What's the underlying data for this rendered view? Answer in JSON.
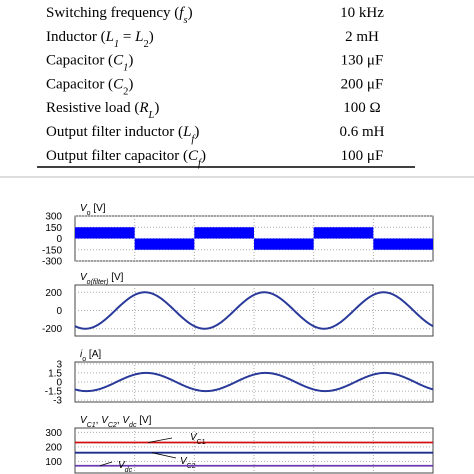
{
  "table": {
    "rows": [
      {
        "parameter": [
          {
            "t": "Switching frequency ("
          },
          {
            "t": "f",
            "i": true
          },
          {
            "t": "s",
            "i": true,
            "sub": true
          },
          {
            "t": ")"
          }
        ],
        "value": "10 kHz"
      },
      {
        "parameter": [
          {
            "t": "Inductor ("
          },
          {
            "t": "L",
            "i": true
          },
          {
            "t": "1",
            "i": true,
            "sub": true
          },
          {
            "t": " = "
          },
          {
            "t": "L",
            "i": true
          },
          {
            "t": "2",
            "sub": true
          },
          {
            "t": ")"
          }
        ],
        "value": "2 mH"
      },
      {
        "parameter": [
          {
            "t": "Capacitor ("
          },
          {
            "t": "C",
            "i": true
          },
          {
            "t": "1",
            "i": true,
            "sub": true
          },
          {
            "t": ")"
          }
        ],
        "value": "130 μF"
      },
      {
        "parameter": [
          {
            "t": "Capacitor ("
          },
          {
            "t": "C",
            "i": true
          },
          {
            "t": "2",
            "sub": true
          },
          {
            "t": ")"
          }
        ],
        "value": "200 μF"
      },
      {
        "parameter": [
          {
            "t": "Resistive load ("
          },
          {
            "t": "R",
            "i": true
          },
          {
            "t": "L",
            "i": true,
            "sub": true
          },
          {
            "t": ")"
          }
        ],
        "value": "100 Ω"
      },
      {
        "parameter": [
          {
            "t": "Output filter inductor ("
          },
          {
            "t": "L",
            "i": true
          },
          {
            "t": "f",
            "i": true,
            "sub": true
          },
          {
            "t": ")"
          }
        ],
        "value": "0.6 mH"
      },
      {
        "parameter": [
          {
            "t": "Output filter capacitor ("
          },
          {
            "t": "C",
            "i": true
          },
          {
            "t": "f",
            "i": true,
            "sub": true
          },
          {
            "t": ")"
          }
        ],
        "value": "100 μF"
      }
    ]
  },
  "chart_data": [
    {
      "type": "square",
      "title": [
        {
          "t": "V",
          "i": true
        },
        {
          "t": "o",
          "sub": true
        },
        {
          "t": " [V]"
        }
      ],
      "ylim": [
        -300,
        300
      ],
      "yticks": [
        300,
        150,
        0,
        -150,
        -300
      ],
      "values": [
        150,
        -150,
        150,
        -150,
        150,
        -150
      ],
      "color": "#0000ff",
      "grid": true
    },
    {
      "type": "sine",
      "title": [
        {
          "t": "V",
          "i": true
        },
        {
          "t": "o(filter)",
          "i": true,
          "sub": true
        },
        {
          "t": " [V]"
        }
      ],
      "ylim": [
        -280,
        280
      ],
      "yticks": [
        200,
        0,
        -200
      ],
      "amplitude": 200,
      "cycles": 3,
      "phase_deg": -121,
      "color": "#2a3a9a",
      "grid": true
    },
    {
      "type": "sine",
      "title": [
        {
          "t": "i",
          "i": true
        },
        {
          "t": "o",
          "sub": true
        },
        {
          "t": " [A]"
        }
      ],
      "ylim": [
        -3.3,
        3.3
      ],
      "yticks": [
        3,
        1.5,
        0,
        -1.5,
        -3
      ],
      "amplitude": 1.5,
      "cycles": 3,
      "phase_deg": -125,
      "color": "#2a3a9a",
      "grid": true
    },
    {
      "type": "hlines",
      "title": [
        {
          "t": "V",
          "i": true
        },
        {
          "t": "C1",
          "i": true,
          "sub": true
        },
        {
          "t": ", "
        },
        {
          "t": "V",
          "i": true
        },
        {
          "t": "C2",
          "i": true,
          "sub": true
        },
        {
          "t": ", "
        },
        {
          "t": "V",
          "i": true
        },
        {
          "t": "dc",
          "i": true,
          "sub": true
        },
        {
          "t": " [V]"
        }
      ],
      "ylim": [
        20,
        330
      ],
      "yticks": [
        300,
        200,
        100
      ],
      "grid": true,
      "series": [
        {
          "name": [
            {
              "t": "V",
              "i": true
            },
            {
              "t": "C1",
              "sub": true
            }
          ],
          "value": 230,
          "color": "#d01010"
        },
        {
          "name": [
            {
              "t": "V",
              "i": true
            },
            {
              "t": "C2",
              "sub": true
            }
          ],
          "value": 160,
          "color": "#1a2a8a"
        },
        {
          "name": [
            {
              "t": "V",
              "i": true
            },
            {
              "t": "dc",
              "i": true,
              "sub": true
            }
          ],
          "value": 70,
          "color": "#6a3ab0"
        }
      ]
    }
  ]
}
